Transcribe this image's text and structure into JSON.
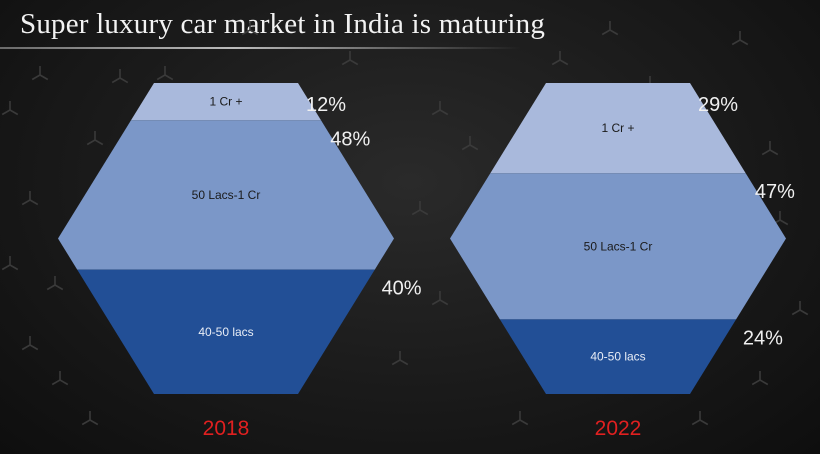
{
  "title": "Super luxury car market in India is maturing",
  "chart_data": {
    "type": "stacked-hexagon",
    "segments": [
      "1 Cr +",
      "50  Lacs-1 Cr",
      "40-50 lacs"
    ],
    "colors": [
      "#a9b9dc",
      "#7b97c8",
      "#224f96"
    ],
    "panels": [
      {
        "year": "2018",
        "values": [
          12,
          48,
          40
        ],
        "value_labels": [
          "12%",
          "48%",
          "40%"
        ]
      },
      {
        "year": "2022",
        "values": [
          29,
          47,
          24
        ],
        "value_labels": [
          "29%",
          "47%",
          "24%"
        ]
      }
    ]
  }
}
